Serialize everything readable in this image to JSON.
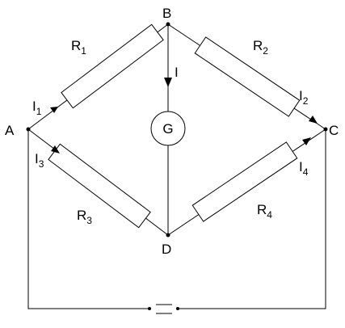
{
  "nodes": {
    "a": "A",
    "b": "B",
    "c": "C",
    "d": "D"
  },
  "resistors": [
    {
      "id": "r1",
      "letter": "R",
      "sub": "1"
    },
    {
      "id": "r2",
      "letter": "R",
      "sub": "2"
    },
    {
      "id": "r3",
      "letter": "R",
      "sub": "3"
    },
    {
      "id": "r4",
      "letter": "R",
      "sub": "4"
    }
  ],
  "currents": [
    {
      "id": "i1",
      "letter": "I",
      "sub": "1"
    },
    {
      "id": "i2",
      "letter": "I",
      "sub": "2"
    },
    {
      "id": "i3",
      "letter": "I",
      "sub": "3"
    },
    {
      "id": "i4",
      "letter": "I",
      "sub": "4"
    }
  ],
  "galvanometer": {
    "label": "G",
    "current": "I"
  }
}
